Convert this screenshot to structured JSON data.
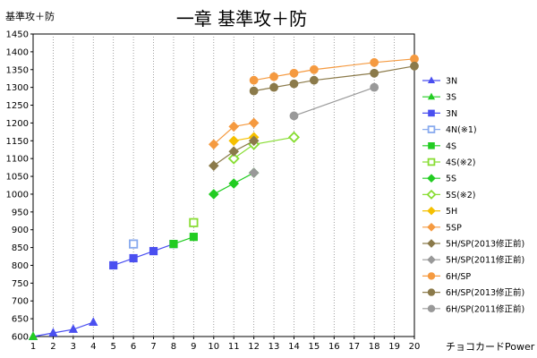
{
  "chart_data": {
    "type": "line",
    "title": "一章 基準攻＋防",
    "ylabel": "基準攻＋防",
    "xlabel": "チョコカードPower",
    "xlim": [
      1,
      20
    ],
    "ylim": [
      600,
      1450
    ],
    "x_ticks": [
      1,
      2,
      3,
      4,
      5,
      6,
      7,
      8,
      9,
      10,
      11,
      12,
      13,
      14,
      15,
      16,
      17,
      18,
      19,
      20
    ],
    "y_ticks": [
      600,
      650,
      700,
      750,
      800,
      850,
      900,
      950,
      1000,
      1050,
      1100,
      1150,
      1200,
      1250,
      1300,
      1350,
      1400,
      1450
    ],
    "grid": "vertical-dotted",
    "legend_position": "right",
    "series": [
      {
        "name": "3N",
        "color": "#4a4ff0",
        "marker": "triangle",
        "filled": true,
        "line": true,
        "x": [
          1,
          2,
          3,
          4
        ],
        "y": [
          600,
          610,
          620,
          640
        ]
      },
      {
        "name": "3S",
        "color": "#22cc22",
        "marker": "triangle",
        "filled": true,
        "line": true,
        "x": [
          1
        ],
        "y": [
          600
        ]
      },
      {
        "name": "3N",
        "color": "#4a4ff0",
        "marker": "square",
        "filled": true,
        "line": true,
        "x": [
          5,
          6,
          7,
          8
        ],
        "y": [
          800,
          820,
          840,
          860
        ]
      },
      {
        "name": "4N(※1)",
        "color": "#88aaee",
        "marker": "square",
        "filled": false,
        "line": false,
        "x": [
          6
        ],
        "y": [
          860
        ]
      },
      {
        "name": "4S",
        "color": "#22cc22",
        "marker": "square",
        "filled": true,
        "line": true,
        "x": [
          8,
          9
        ],
        "y": [
          860,
          880
        ]
      },
      {
        "name": "4S(※2)",
        "color": "#88dd33",
        "marker": "square",
        "filled": false,
        "line": false,
        "x": [
          9
        ],
        "y": [
          920
        ]
      },
      {
        "name": "5S",
        "color": "#22cc22",
        "marker": "diamond",
        "filled": true,
        "line": true,
        "x": [
          10,
          11,
          12
        ],
        "y": [
          1000,
          1030,
          1060
        ]
      },
      {
        "name": "5S(※2)",
        "color": "#88dd33",
        "marker": "diamond",
        "filled": false,
        "line": true,
        "x": [
          11,
          12,
          14
        ],
        "y": [
          1100,
          1140,
          1160
        ]
      },
      {
        "name": "5H",
        "color": "#f5c000",
        "marker": "diamond",
        "filled": true,
        "line": true,
        "x": [
          11,
          12
        ],
        "y": [
          1150,
          1160
        ]
      },
      {
        "name": "5SP",
        "color": "#f59a40",
        "marker": "diamond",
        "filled": true,
        "line": true,
        "x": [
          10,
          11,
          12
        ],
        "y": [
          1140,
          1190,
          1200
        ]
      },
      {
        "name": "5H/SP(2013修正前)",
        "color": "#8b7a4a",
        "marker": "diamond",
        "filled": true,
        "line": true,
        "x": [
          10,
          11,
          12
        ],
        "y": [
          1080,
          1120,
          1150
        ]
      },
      {
        "name": "5H/SP(2011修正前)",
        "color": "#999999",
        "marker": "diamond",
        "filled": true,
        "line": true,
        "x": [
          12
        ],
        "y": [
          1060
        ]
      },
      {
        "name": "6H/SP",
        "color": "#f59a40",
        "marker": "circle",
        "filled": true,
        "line": true,
        "x": [
          12,
          13,
          14,
          15,
          18,
          20
        ],
        "y": [
          1320,
          1330,
          1340,
          1350,
          1370,
          1380
        ]
      },
      {
        "name": "6H/SP(2013修正前)",
        "color": "#8b7a4a",
        "marker": "circle",
        "filled": true,
        "line": true,
        "x": [
          12,
          13,
          14,
          15,
          18,
          20
        ],
        "y": [
          1290,
          1300,
          1310,
          1320,
          1340,
          1360
        ]
      },
      {
        "name": "6H/SP(2011修正前)",
        "color": "#999999",
        "marker": "circle",
        "filled": true,
        "line": true,
        "x": [
          14,
          18
        ],
        "y": [
          1220,
          1300
        ]
      }
    ]
  }
}
